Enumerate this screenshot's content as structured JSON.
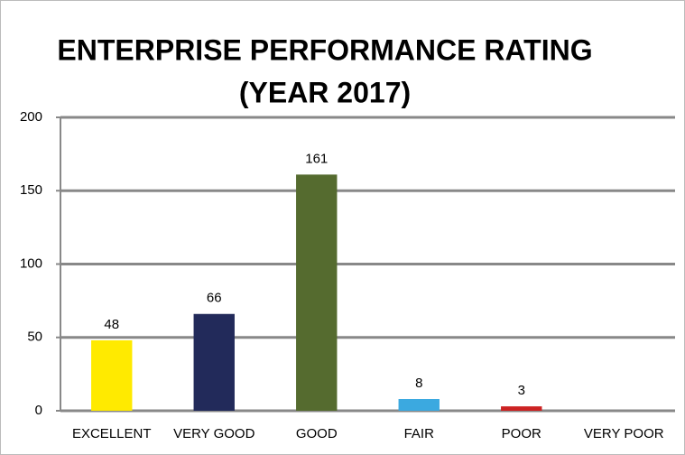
{
  "chart_data": {
    "type": "bar",
    "title": [
      "ENTERPRISE PERFORMANCE RATING",
      "(YEAR 2017)"
    ],
    "categories": [
      "EXCELLENT",
      "VERY GOOD",
      "GOOD",
      "FAIR",
      "POOR",
      "VERY POOR"
    ],
    "values": [
      48,
      66,
      161,
      8,
      3,
      null
    ],
    "colors": [
      "#ffea00",
      "#222a5a",
      "#556b2f",
      "#3ba9e0",
      "#cc2222",
      null
    ],
    "ylim": [
      0,
      200
    ],
    "yticks": [
      0,
      50,
      100,
      150,
      200
    ],
    "grid": true
  }
}
